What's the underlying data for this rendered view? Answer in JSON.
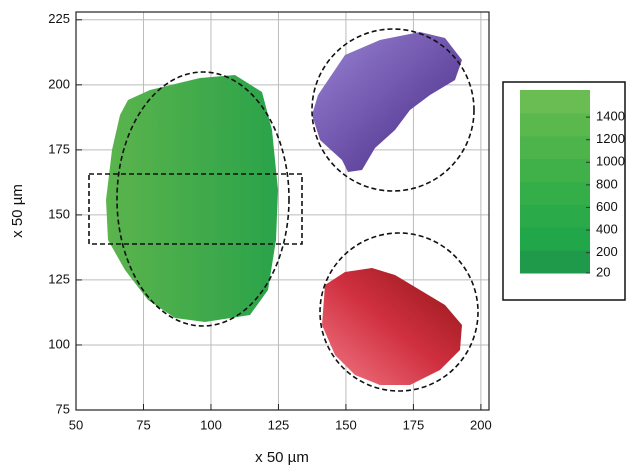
{
  "chart_data": {
    "type": "image",
    "x_label": "x 50 µm",
    "y_label": "x 50 µm",
    "xlim": [
      50,
      203
    ],
    "ylim": [
      75,
      228
    ],
    "xticks": [
      50,
      75,
      100,
      125,
      150,
      175,
      200
    ],
    "yticks": [
      75,
      100,
      125,
      150,
      175,
      200,
      225
    ],
    "grid": true,
    "colorbar": {
      "lim": [
        20,
        1640
      ],
      "ticks": [
        20,
        200,
        400,
        600,
        800,
        1000,
        1200,
        1400
      ],
      "colors": [
        "#1e9a4a",
        "#22a64a",
        "#2aaa48",
        "#34ae48",
        "#40b048",
        "#4cb44a",
        "#5ab84c",
        "#6abd52"
      ]
    }
  }
}
